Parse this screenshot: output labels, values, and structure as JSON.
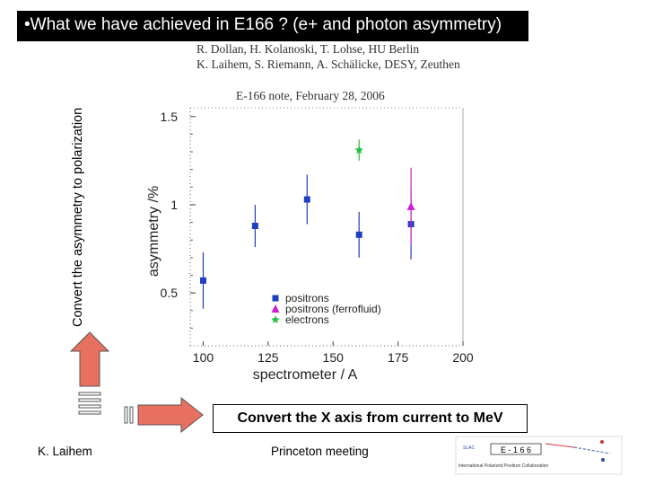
{
  "slide": {
    "title": "•What we have achieved in E166 ? (e+ and photon asymmetry)",
    "vertical_label": "Convert  the asymmetry to polarization",
    "authors_line1": "R. Dollan, H. Kolanoski, T. Lohse, HU Berlin",
    "authors_line2": "K. Laihem, S. Riemann, A. Schälicke, DESY, Zeuthen",
    "note": "E-166 note, February 28, 2006",
    "caption_x": "Convert the X axis from current to MeV",
    "footer_left": "K. Laihem",
    "footer_center": "Princeton meeting",
    "logo_text": "E - 1 6 6",
    "logo_subtitle": "International Polarized Positron Collaboration",
    "colors": {
      "title_bg": "#000000",
      "arrow_fill": "#e87060",
      "positrons": "#1f3fbf",
      "ferrofluid": "#d020d0",
      "electrons": "#20c040"
    }
  },
  "chart_data": {
    "type": "scatter",
    "xlabel": "spectrometer / A",
    "ylabel": "asymmetry /%",
    "xlim": [
      95,
      200
    ],
    "ylim": [
      0.2,
      1.55
    ],
    "x_ticks": [
      100,
      125,
      150,
      175,
      200
    ],
    "y_ticks": [
      0.5,
      1,
      1.5
    ],
    "grid": false,
    "legend_position": "bottom-right",
    "series": [
      {
        "name": "positrons",
        "marker": "square",
        "color": "#1f3fbf",
        "points": [
          {
            "x": 100,
            "y": 0.57,
            "err": 0.16
          },
          {
            "x": 120,
            "y": 0.88,
            "err": 0.12
          },
          {
            "x": 140,
            "y": 1.03,
            "err": 0.14
          },
          {
            "x": 160,
            "y": 0.83,
            "err": 0.13
          },
          {
            "x": 180,
            "y": 0.89,
            "err": 0.2
          }
        ]
      },
      {
        "name": "positrons (ferrofluid)",
        "marker": "triangle",
        "color": "#d020d0",
        "points": [
          {
            "x": 180,
            "y": 0.99,
            "err": 0.22
          }
        ]
      },
      {
        "name": "electrons",
        "marker": "star",
        "color": "#20c040",
        "points": [
          {
            "x": 160,
            "y": 1.31,
            "err": 0.06
          }
        ]
      }
    ]
  }
}
